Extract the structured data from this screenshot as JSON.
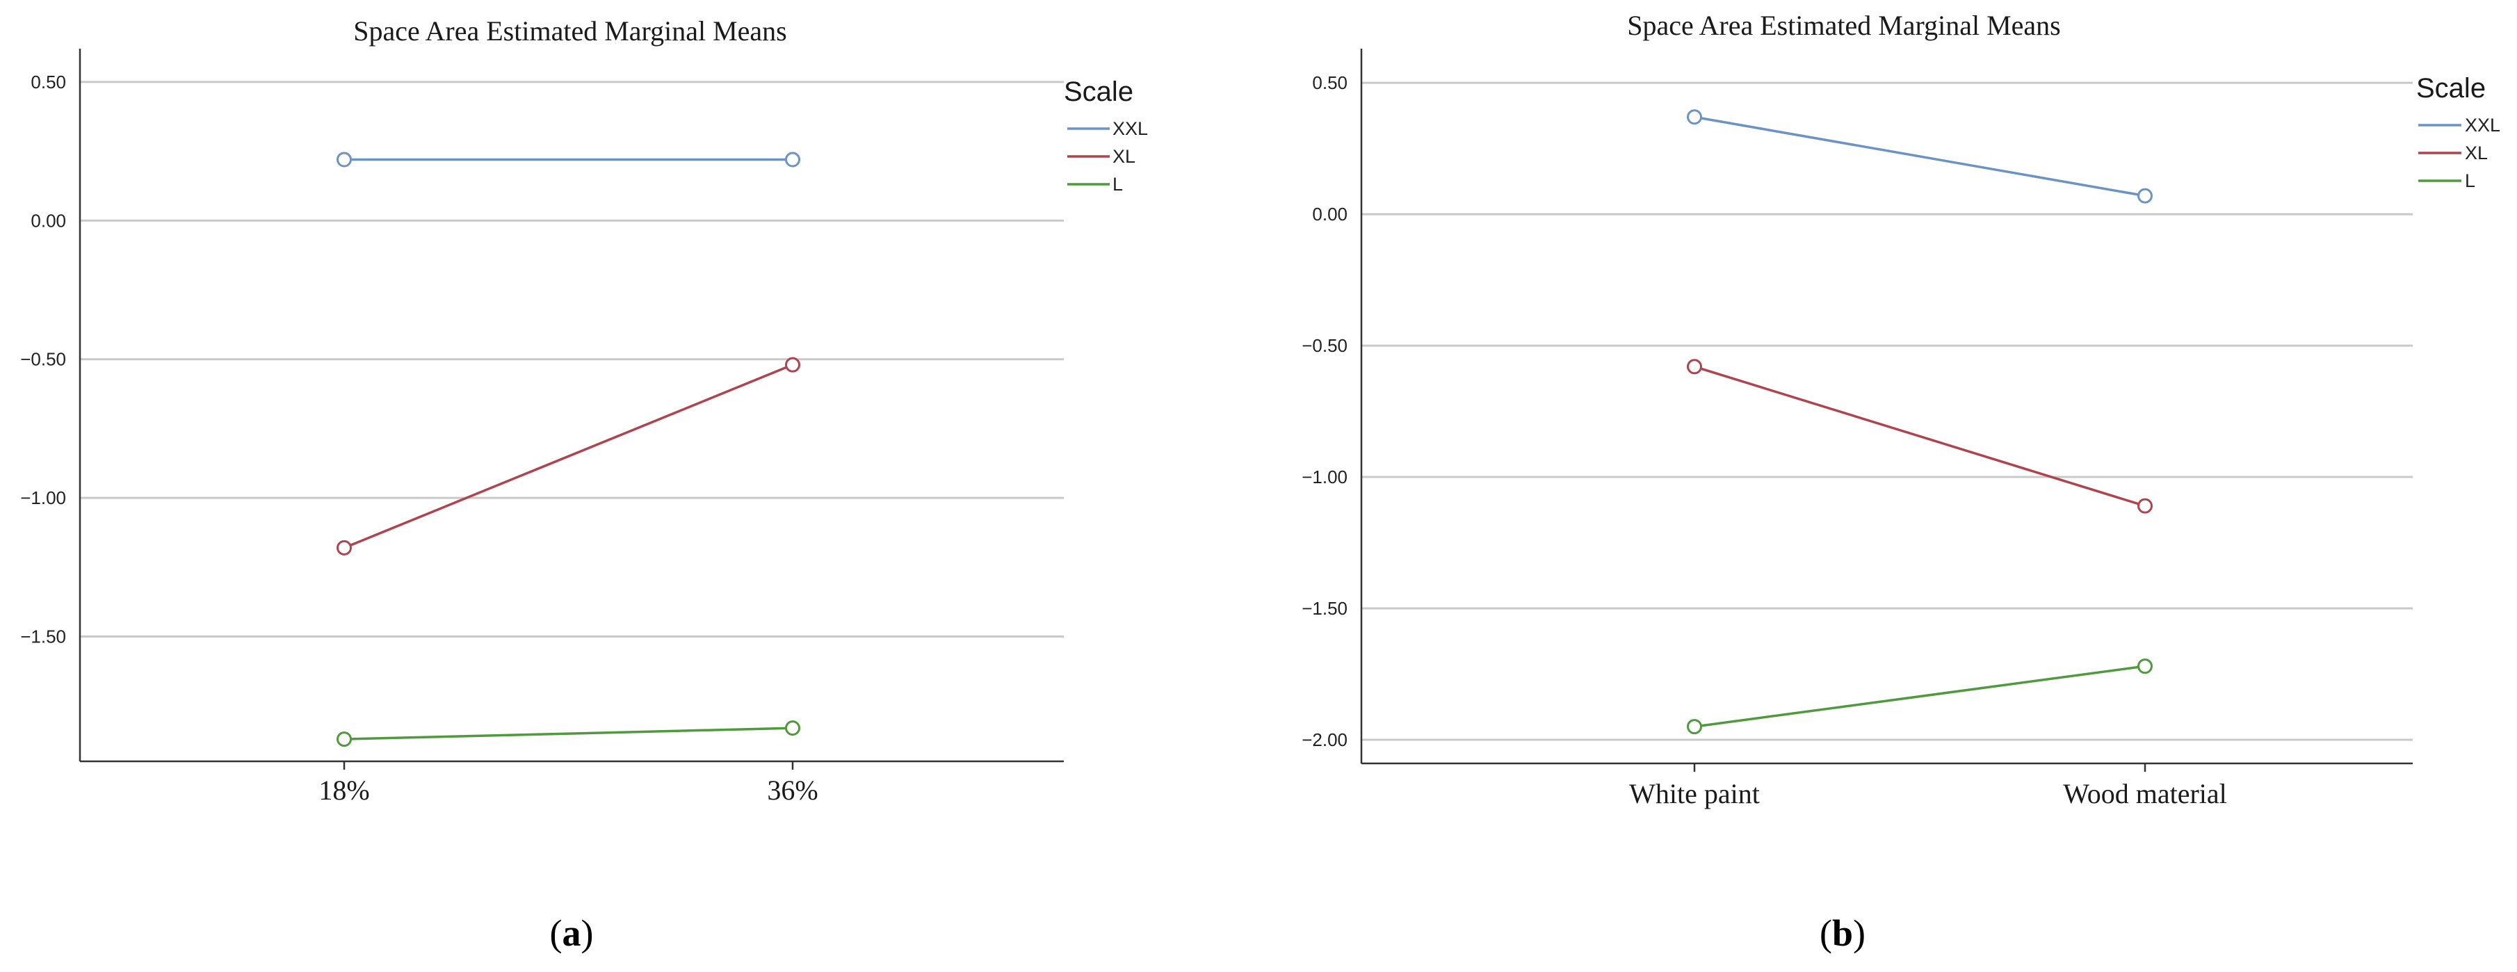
{
  "chart_data": [
    {
      "type": "line",
      "title": "Space Area   Estimated Marginal Means",
      "caption": {
        "open": "(",
        "letter": "a",
        "close": ")"
      },
      "categories": [
        "18%",
        "36%"
      ],
      "ylim": [
        -1.95,
        0.62
      ],
      "yticks": [
        0.5,
        0.0,
        -0.5,
        -1.0,
        -1.5
      ],
      "ytick_labels": [
        "0.50",
        "0.00",
        "−0.50",
        "−1.00",
        "−1.50"
      ],
      "grid": true,
      "legend": {
        "title": "Scale",
        "placement": "top-right"
      },
      "series": [
        {
          "name": "XXL",
          "color": "#6b93c4",
          "values": [
            0.22,
            0.22
          ]
        },
        {
          "name": "XL",
          "color": "#b0444e",
          "values": [
            -1.18,
            -0.52
          ]
        },
        {
          "name": "L",
          "color": "#4f9a3c",
          "values": [
            -1.87,
            -1.83
          ]
        }
      ]
    },
    {
      "type": "line",
      "title": "Space Area   Estimated Marginal Means",
      "caption": {
        "open": "(",
        "letter": "b",
        "close": ")"
      },
      "categories": [
        "White paint",
        "Wood material"
      ],
      "ylim": [
        -2.09,
        0.63
      ],
      "yticks": [
        0.5,
        0.0,
        -0.5,
        -1.0,
        -1.5,
        -2.0
      ],
      "ytick_labels": [
        "0.50",
        "0.00",
        "−0.50",
        "−1.00",
        "−1.50",
        "−2.00"
      ],
      "grid": true,
      "legend": {
        "title": "Scale",
        "placement": "top-right"
      },
      "series": [
        {
          "name": "XXL",
          "color": "#6b93c4",
          "values": [
            0.37,
            0.07
          ]
        },
        {
          "name": "XL",
          "color": "#b0444e",
          "values": [
            -0.58,
            -1.11
          ]
        },
        {
          "name": "L",
          "color": "#4f9a3c",
          "values": [
            -1.95,
            -1.72
          ]
        }
      ]
    }
  ]
}
